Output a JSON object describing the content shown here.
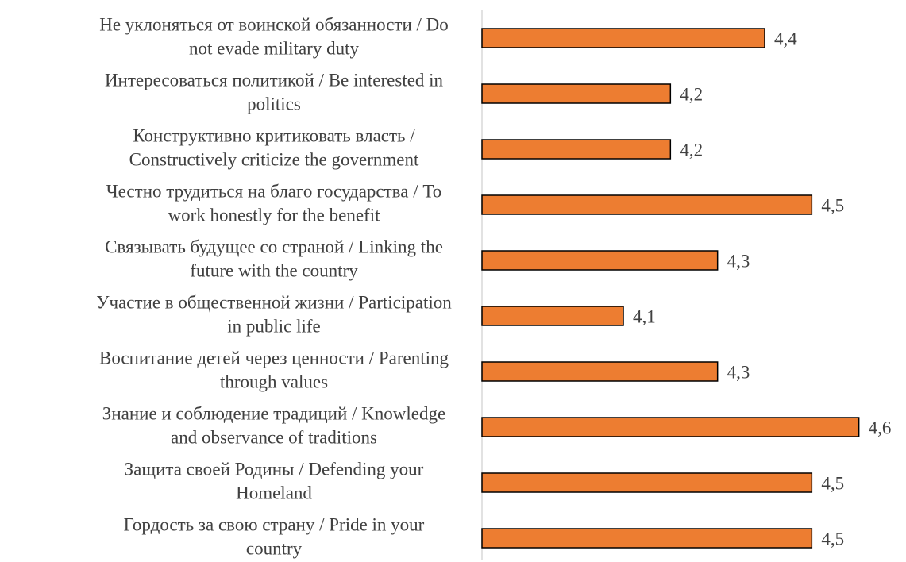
{
  "chart_data": {
    "type": "barh",
    "categories": [
      [
        "Не уклоняться от воинской обязанности / Do",
        "not evade military duty"
      ],
      [
        "Интересоваться политикой / Be interested in",
        "politics"
      ],
      [
        "Конструктивно критиковать власть /",
        "Constructively criticize the government"
      ],
      [
        "Честно трудиться на благо государства / To",
        "work honestly for the benefit"
      ],
      [
        "Связывать будущее со страной / Linking the",
        "future with the country"
      ],
      [
        "Участие в общественной жизни / Participation",
        "in public life"
      ],
      [
        "Воспитание детей через ценности / Parenting",
        "through values"
      ],
      [
        "Знание и соблюдение традиций / Knowledge",
        "and observance of traditions"
      ],
      [
        "Защита своей Родины / Defending your",
        "Homeland"
      ],
      [
        "Гордость за свою страну / Pride in your",
        "country"
      ]
    ],
    "values": [
      4.4,
      4.2,
      4.2,
      4.5,
      4.3,
      4.1,
      4.3,
      4.6,
      4.5,
      4.5
    ],
    "value_labels": [
      "4,4",
      "4,2",
      "4,2",
      "4,5",
      "4,3",
      "4,1",
      "4,3",
      "4,6",
      "4,5",
      "4,5"
    ],
    "color": "#ed7d31",
    "xlim": [
      3.8,
      4.7
    ]
  }
}
